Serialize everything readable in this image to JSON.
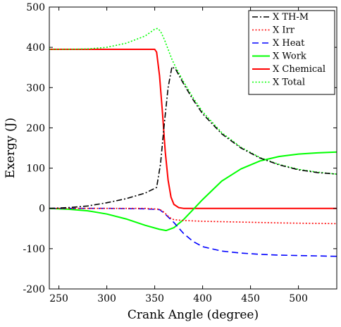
{
  "chart_data": {
    "type": "line",
    "title": "",
    "xlabel": "Crank Angle (degree)",
    "ylabel": "Exergy (J)",
    "xlim": [
      240,
      540
    ],
    "ylim": [
      -200,
      500
    ],
    "xticks": [
      250,
      300,
      350,
      400,
      450,
      500
    ],
    "yticks": [
      -200,
      -100,
      0,
      100,
      200,
      300,
      400,
      500
    ],
    "grid": false,
    "legend_position": "top-right",
    "series": [
      {
        "name": "X TH-M",
        "color": "#000000",
        "style": "dashdot",
        "x": [
          240,
          260,
          280,
          300,
          320,
          340,
          352,
          356,
          360,
          364,
          368,
          372,
          380,
          390,
          400,
          420,
          440,
          460,
          480,
          500,
          520,
          540
        ],
        "y": [
          0,
          2,
          6,
          14,
          24,
          38,
          52,
          110,
          210,
          300,
          352,
          345,
          310,
          270,
          235,
          185,
          150,
          125,
          108,
          96,
          89,
          85
        ]
      },
      {
        "name": "X Irr",
        "color": "#ff0000",
        "style": "dotted",
        "x": [
          240,
          300,
          340,
          355,
          360,
          365,
          370,
          380,
          400,
          440,
          480,
          540
        ],
        "y": [
          0,
          0,
          0,
          -2,
          -10,
          -22,
          -28,
          -30,
          -32,
          -34,
          -36,
          -38
        ]
      },
      {
        "name": "X Heat",
        "color": "#0000ff",
        "style": "dashed",
        "x": [
          240,
          300,
          340,
          355,
          360,
          370,
          380,
          390,
          400,
          420,
          440,
          460,
          480,
          500,
          540
        ],
        "y": [
          0,
          0,
          -1,
          -3,
          -12,
          -35,
          -62,
          -82,
          -95,
          -106,
          -111,
          -114,
          -116,
          -117,
          -119
        ]
      },
      {
        "name": "X Work",
        "color": "#00ff00",
        "style": "solid",
        "x": [
          240,
          260,
          280,
          300,
          320,
          340,
          355,
          362,
          370,
          380,
          390,
          400,
          420,
          440,
          460,
          480,
          500,
          520,
          540
        ],
        "y": [
          0,
          -2,
          -6,
          -14,
          -26,
          -42,
          -52,
          -55,
          -48,
          -28,
          -3,
          22,
          68,
          98,
          118,
          129,
          135,
          138,
          140
        ]
      },
      {
        "name": "X Chemical",
        "color": "#ff0000",
        "style": "solid",
        "x": [
          240,
          300,
          340,
          350,
          352,
          355,
          358,
          361,
          364,
          367,
          370,
          375,
          380,
          400,
          450,
          500,
          540
        ],
        "y": [
          395,
          395,
          395,
          395,
          388,
          330,
          240,
          140,
          70,
          28,
          10,
          2,
          0,
          0,
          0,
          0,
          0
        ]
      },
      {
        "name": "X Total",
        "color": "#00ff00",
        "style": "dotted",
        "x": [
          240,
          260,
          280,
          300,
          320,
          340,
          350,
          353,
          356,
          360,
          364,
          368,
          372,
          380,
          390,
          400,
          420,
          440,
          460,
          480,
          500,
          520,
          540
        ],
        "y": [
          395,
          395,
          396,
          400,
          410,
          428,
          445,
          447,
          440,
          420,
          395,
          370,
          350,
          315,
          275,
          240,
          188,
          152,
          126,
          109,
          97,
          90,
          85
        ]
      }
    ]
  }
}
